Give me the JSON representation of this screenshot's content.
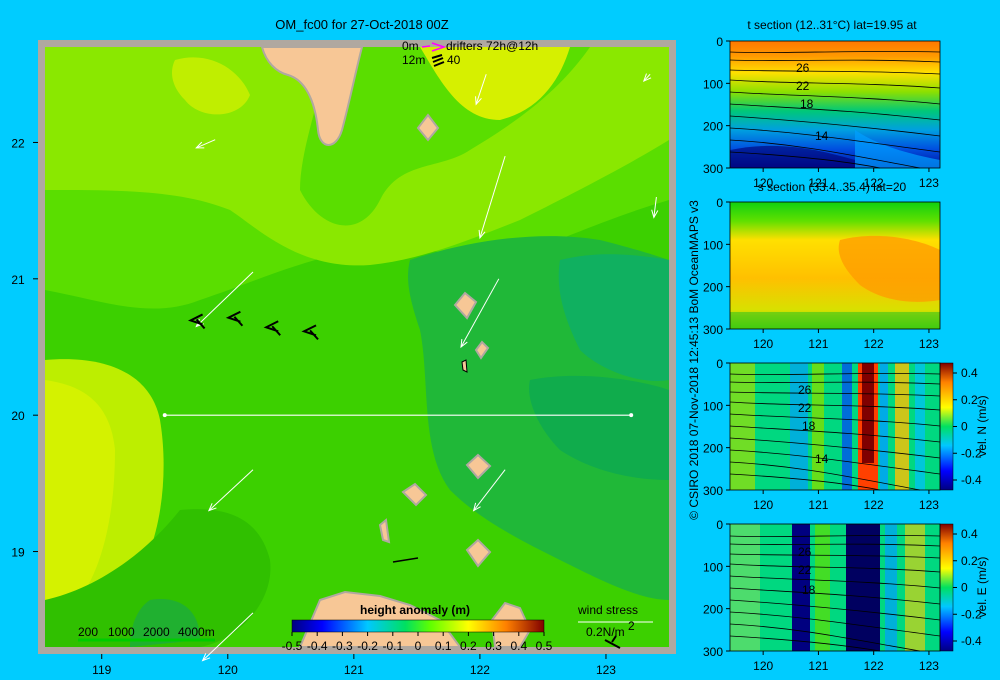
{
  "colors": {
    "background": "#00ccff",
    "land": "#f7c796",
    "coast_frame": "#b0a8a0",
    "shelf_green": "#00cc00"
  },
  "chart_data": [
    {
      "id": "main_map",
      "type": "heatmap",
      "title": "OM_fc00 for 27-Oct-2018 00Z",
      "x_ticks": [
        "119",
        "120",
        "121",
        "122",
        "123"
      ],
      "y_ticks": [
        "22",
        "21",
        "20",
        "19"
      ],
      "xlim": [
        118.55,
        123.5
      ],
      "ylim": [
        18.3,
        22.7
      ],
      "section_line": {
        "lon": [
          119.5,
          123.2
        ],
        "lat": [
          20,
          20
        ]
      },
      "drifters_legend": {
        "top_label": "0m",
        "top_text": "drifters 72h@12h",
        "bottom_label": "12m",
        "bottom_text": "40"
      },
      "depth_legend": [
        "200",
        "1000",
        "2000",
        "4000m"
      ],
      "colorbar": {
        "title": "height anomaly (m)",
        "ticks": [
          "-0.5",
          "-0.4",
          "-0.3",
          "-0.2",
          "-0.1",
          "0",
          "0.1",
          "0.2",
          "0.3",
          "0.4",
          "0.5"
        ]
      },
      "wind_legend": {
        "label": "wind stress",
        "unit": "0.2N/m",
        "superscript": "2"
      },
      "currents": [
        {
          "lon": 122.05,
          "lat": 22.5,
          "dlon": -0.08,
          "dlat": -0.22
        },
        {
          "lon": 122.2,
          "lat": 21.9,
          "dlon": -0.2,
          "dlat": -0.6
        },
        {
          "lon": 120.2,
          "lat": 21.05,
          "dlon": -0.45,
          "dlat": -0.4
        },
        {
          "lon": 122.15,
          "lat": 21.0,
          "dlon": -0.3,
          "dlat": -0.5
        },
        {
          "lon": 120.2,
          "lat": 19.6,
          "dlon": -0.35,
          "dlat": -0.3
        },
        {
          "lon": 122.2,
          "lat": 19.6,
          "dlon": -0.25,
          "dlat": -0.3
        },
        {
          "lon": 120.2,
          "lat": 18.55,
          "dlon": -0.4,
          "dlat": -0.35
        },
        {
          "lon": 119.9,
          "lat": 22.02,
          "dlon": -0.15,
          "dlat": -0.06
        },
        {
          "lon": 123.4,
          "lat": 21.6,
          "dlon": -0.02,
          "dlat": -0.15
        },
        {
          "lon": 123.35,
          "lat": 22.5,
          "dlon": -0.05,
          "dlat": -0.05
        }
      ],
      "wind_barbs": [
        {
          "lon": 120.7,
          "lat": 20.6
        },
        {
          "lon": 120.4,
          "lat": 20.63
        },
        {
          "lon": 120.1,
          "lat": 20.7
        },
        {
          "lon": 119.8,
          "lat": 20.68
        }
      ]
    },
    {
      "id": "t_section",
      "type": "heatmap",
      "title": "t section (12..31°C) lat=19.95 at",
      "x_ticks": [
        "120",
        "121",
        "122",
        "123"
      ],
      "y_ticks": [
        "0",
        "100",
        "200",
        "300"
      ],
      "xlim": [
        119.4,
        123.2
      ],
      "ylim": [
        0,
        300
      ],
      "contour_labels": [
        "26",
        "22",
        "18",
        "14"
      ]
    },
    {
      "id": "s_section",
      "type": "heatmap",
      "title": "s section (33.4..35.4) lat=20",
      "x_ticks": [
        "120",
        "121",
        "122",
        "123"
      ],
      "y_ticks": [
        "0",
        "100",
        "200",
        "300"
      ],
      "xlim": [
        119.4,
        123.2
      ],
      "ylim": [
        0,
        300
      ]
    },
    {
      "id": "vel_n_section",
      "type": "heatmap",
      "x_ticks": [
        "120",
        "121",
        "122",
        "123"
      ],
      "y_ticks": [
        "0",
        "100",
        "200",
        "300"
      ],
      "xlim": [
        119.4,
        123.2
      ],
      "ylim": [
        0,
        300
      ],
      "contour_labels": [
        "26",
        "22",
        "18",
        "14"
      ],
      "colorbar": {
        "ticks": [
          "0.4",
          "0.2",
          "0",
          "-0.2",
          "-0.4"
        ],
        "label": "vel. N (m/s)"
      }
    },
    {
      "id": "vel_e_section",
      "type": "heatmap",
      "x_ticks": [
        "120",
        "121",
        "122",
        "123"
      ],
      "y_ticks": [
        "0",
        "100",
        "200",
        "300"
      ],
      "xlim": [
        119.4,
        123.2
      ],
      "ylim": [
        0,
        300
      ],
      "contour_labels": [
        "26",
        "22",
        "18"
      ],
      "colorbar": {
        "ticks": [
          "0.4",
          "0.2",
          "0",
          "-0.2",
          "-0.4"
        ],
        "label": "vel. E (m/s)"
      }
    }
  ],
  "credit": "© CSIRO 2018  07-Nov-2018 12:45:13 BoM OceanMAPS v3"
}
